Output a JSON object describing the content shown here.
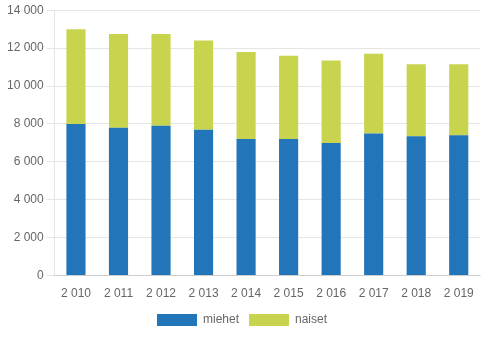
{
  "chart_data": {
    "type": "bar",
    "stacked": true,
    "categories": [
      "2 010",
      "2 011",
      "2 012",
      "2 013",
      "2 014",
      "2 015",
      "2 016",
      "2 017",
      "2 018",
      "2 019"
    ],
    "series": [
      {
        "name": "miehet",
        "color": "#2175b8",
        "values": [
          8000,
          7800,
          7900,
          7700,
          7200,
          7200,
          7000,
          7500,
          7350,
          7400
        ]
      },
      {
        "name": "naiset",
        "color": "#c8d44e",
        "values": [
          5000,
          4950,
          4850,
          4700,
          4600,
          4400,
          4350,
          4200,
          3800,
          3750
        ]
      }
    ],
    "ylim": [
      0,
      14000
    ],
    "yticks": [
      0,
      {
        "value": 2000,
        "label": "2 000"
      },
      {
        "value": 4000,
        "label": "4 000"
      },
      {
        "value": 6000,
        "label": "6 000"
      },
      {
        "value": 8000,
        "label": "8 000"
      },
      {
        "value": 10000,
        "label": "10 000"
      },
      {
        "value": 12000,
        "label": "12 000"
      },
      {
        "value": 14000,
        "label": "14 000"
      }
    ],
    "grid": true,
    "legend": "bottom"
  }
}
